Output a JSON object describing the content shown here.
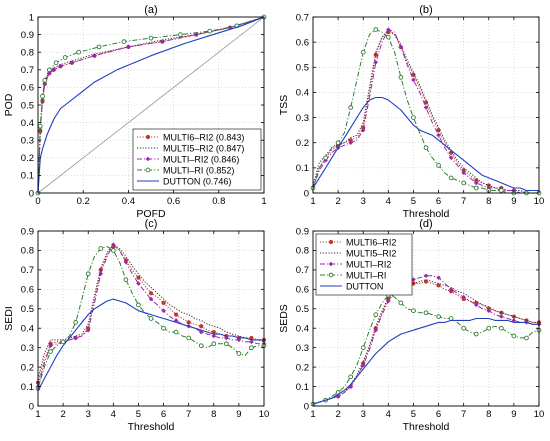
{
  "chart_data": [
    {
      "type": "line",
      "panel_label": "(a)",
      "xlabel": "POFD",
      "ylabel": "POD",
      "xlim": [
        0,
        1
      ],
      "ylim": [
        0,
        1
      ],
      "xticks": [
        "0",
        "0.2",
        "0.4",
        "0.6",
        "0.8",
        "1"
      ],
      "yticks": [
        "0",
        "0.1",
        "0.2",
        "0.3",
        "0.4",
        "0.5",
        "0.6",
        "0.7",
        "0.8",
        "0.9",
        "1"
      ],
      "grid": true,
      "legend": "bottom-right",
      "reference_line": "diagonal",
      "series": [
        {
          "name": "MULTI6–RI2 (0.843)",
          "color": "#c0392b",
          "style": "dotted-circle",
          "x": [
            0,
            0.01,
            0.02,
            0.03,
            0.05,
            0.07,
            0.1,
            0.15,
            0.25,
            0.4,
            0.55,
            0.7,
            0.85,
            1.0
          ],
          "y": [
            0,
            0.35,
            0.52,
            0.62,
            0.68,
            0.7,
            0.72,
            0.74,
            0.78,
            0.83,
            0.86,
            0.9,
            0.94,
            1.0
          ]
        },
        {
          "name": "MULTI5–RI2 (0.847)",
          "color": "#333333",
          "style": "dotted",
          "x": [
            0,
            0.01,
            0.02,
            0.03,
            0.05,
            0.07,
            0.1,
            0.15,
            0.25,
            0.4,
            0.55,
            0.7,
            0.85,
            1.0
          ],
          "y": [
            0,
            0.37,
            0.54,
            0.63,
            0.69,
            0.71,
            0.73,
            0.75,
            0.79,
            0.83,
            0.87,
            0.9,
            0.94,
            1.0
          ]
        },
        {
          "name": "MULTI–RI2 (0.846)",
          "color": "#9b27b0",
          "style": "dashdot-diamond",
          "x": [
            0,
            0.01,
            0.02,
            0.03,
            0.05,
            0.07,
            0.1,
            0.15,
            0.25,
            0.4,
            0.55,
            0.7,
            0.85,
            1.0
          ],
          "y": [
            0,
            0.36,
            0.53,
            0.62,
            0.68,
            0.7,
            0.72,
            0.74,
            0.78,
            0.83,
            0.86,
            0.9,
            0.94,
            1.0
          ]
        },
        {
          "name": "MULTI–RI (0.852)",
          "color": "#2e7d32",
          "style": "dashdot-circle",
          "x": [
            0,
            0.01,
            0.02,
            0.03,
            0.05,
            0.08,
            0.12,
            0.18,
            0.27,
            0.38,
            0.5,
            0.63,
            0.76,
            0.88,
            1.0
          ],
          "y": [
            0,
            0.38,
            0.55,
            0.64,
            0.7,
            0.74,
            0.77,
            0.8,
            0.83,
            0.86,
            0.88,
            0.9,
            0.92,
            0.95,
            1.0
          ]
        },
        {
          "name": "DUTTON (0.746)",
          "color": "#1f3fbf",
          "style": "solid",
          "x": [
            0,
            0.01,
            0.02,
            0.04,
            0.07,
            0.1,
            0.15,
            0.25,
            0.35,
            0.5,
            0.65,
            0.8,
            0.9,
            1.0
          ],
          "y": [
            0,
            0.2,
            0.25,
            0.33,
            0.42,
            0.48,
            0.53,
            0.63,
            0.7,
            0.78,
            0.85,
            0.91,
            0.95,
            1.0
          ]
        }
      ]
    },
    {
      "type": "line",
      "panel_label": "(b)",
      "xlabel": "Threshold",
      "ylabel": "TSS",
      "xlim": [
        1,
        10
      ],
      "ylim": [
        0,
        0.7
      ],
      "xticks": [
        "1",
        "2",
        "3",
        "4",
        "5",
        "6",
        "7",
        "8",
        "9",
        "10"
      ],
      "yticks": [
        "0",
        "0.1",
        "0.2",
        "0.3",
        "0.4",
        "0.5",
        "0.6",
        "0.7"
      ],
      "grid": true,
      "x": [
        1,
        1.25,
        1.5,
        1.75,
        2,
        2.25,
        2.5,
        2.75,
        3,
        3.25,
        3.5,
        3.75,
        4,
        4.25,
        4.5,
        4.75,
        5,
        5.25,
        5.5,
        5.75,
        6,
        6.25,
        6.5,
        6.75,
        7,
        7.25,
        7.5,
        7.75,
        8,
        8.25,
        8.5,
        8.75,
        9,
        9.25,
        9.5,
        9.75,
        10
      ],
      "series": [
        {
          "name": "MULTI6–RI2",
          "color": "#c0392b",
          "style": "dotted-circle",
          "values": [
            0.02,
            0.1,
            0.14,
            0.17,
            0.19,
            0.2,
            0.21,
            0.22,
            0.26,
            0.4,
            0.55,
            0.62,
            0.64,
            0.63,
            0.58,
            0.52,
            0.47,
            0.42,
            0.36,
            0.3,
            0.25,
            0.2,
            0.16,
            0.12,
            0.09,
            0.07,
            0.05,
            0.04,
            0.03,
            0.02,
            0.02,
            0.01,
            0.01,
            0.01,
            0.0,
            0.0,
            0.0
          ]
        },
        {
          "name": "MULTI5–RI2",
          "color": "#333333",
          "style": "dotted",
          "values": [
            0.03,
            0.12,
            0.15,
            0.18,
            0.19,
            0.2,
            0.22,
            0.23,
            0.28,
            0.42,
            0.56,
            0.62,
            0.65,
            0.63,
            0.59,
            0.53,
            0.48,
            0.43,
            0.37,
            0.31,
            0.26,
            0.21,
            0.17,
            0.13,
            0.1,
            0.08,
            0.06,
            0.04,
            0.03,
            0.02,
            0.02,
            0.01,
            0.01,
            0.01,
            0.0,
            0.0,
            0.0
          ]
        },
        {
          "name": "MULTI–RI2",
          "color": "#9b27b0",
          "style": "dashdot-diamond",
          "values": [
            0.02,
            0.09,
            0.13,
            0.16,
            0.18,
            0.19,
            0.2,
            0.21,
            0.25,
            0.38,
            0.52,
            0.6,
            0.65,
            0.64,
            0.58,
            0.51,
            0.45,
            0.4,
            0.34,
            0.28,
            0.23,
            0.18,
            0.14,
            0.11,
            0.08,
            0.06,
            0.04,
            0.03,
            0.02,
            0.02,
            0.01,
            0.01,
            0.01,
            0.0,
            0.0,
            0.0,
            0.0
          ]
        },
        {
          "name": "MULTI–RI",
          "color": "#2e7d32",
          "style": "dashdot-circle",
          "values": [
            0.02,
            0.1,
            0.14,
            0.18,
            0.2,
            0.24,
            0.34,
            0.45,
            0.56,
            0.63,
            0.65,
            0.64,
            0.62,
            0.56,
            0.46,
            0.37,
            0.3,
            0.24,
            0.18,
            0.14,
            0.11,
            0.08,
            0.06,
            0.05,
            0.04,
            0.03,
            0.02,
            0.02,
            0.01,
            0.01,
            0.01,
            0.0,
            0.0,
            0.0,
            0.0,
            0.0,
            0.0
          ]
        },
        {
          "name": "DUTTON",
          "color": "#1f3fbf",
          "style": "solid",
          "values": [
            0.02,
            0.06,
            0.1,
            0.14,
            0.18,
            0.22,
            0.26,
            0.3,
            0.34,
            0.37,
            0.38,
            0.38,
            0.37,
            0.35,
            0.33,
            0.3,
            0.27,
            0.25,
            0.24,
            0.23,
            0.21,
            0.19,
            0.17,
            0.15,
            0.13,
            0.11,
            0.09,
            0.07,
            0.06,
            0.05,
            0.04,
            0.03,
            0.02,
            0.02,
            0.01,
            0.01,
            0.01
          ]
        }
      ]
    },
    {
      "type": "line",
      "panel_label": "(c)",
      "xlabel": "Threshold",
      "ylabel": "SEDI",
      "xlim": [
        1,
        10
      ],
      "ylim": [
        0,
        0.9
      ],
      "xticks": [
        "1",
        "2",
        "3",
        "4",
        "5",
        "6",
        "7",
        "8",
        "9",
        "10"
      ],
      "yticks": [
        "0",
        "0.1",
        "0.2",
        "0.3",
        "0.4",
        "0.5",
        "0.6",
        "0.7",
        "0.8",
        "0.9"
      ],
      "grid": true,
      "x": [
        1,
        1.25,
        1.5,
        1.75,
        2,
        2.25,
        2.5,
        2.75,
        3,
        3.25,
        3.5,
        3.75,
        4,
        4.25,
        4.5,
        4.75,
        5,
        5.25,
        5.5,
        5.75,
        6,
        6.25,
        6.5,
        6.75,
        7,
        7.25,
        7.5,
        7.75,
        8,
        8.25,
        8.5,
        8.75,
        9,
        9.25,
        9.5,
        9.75,
        10
      ],
      "series": [
        {
          "name": "MULTI6–RI2",
          "color": "#c0392b",
          "style": "dotted-circle",
          "values": [
            0.12,
            0.24,
            0.32,
            0.33,
            0.33,
            0.34,
            0.35,
            0.36,
            0.4,
            0.55,
            0.7,
            0.78,
            0.82,
            0.8,
            0.75,
            0.7,
            0.66,
            0.62,
            0.58,
            0.56,
            0.53,
            0.5,
            0.47,
            0.45,
            0.43,
            0.42,
            0.41,
            0.39,
            0.38,
            0.37,
            0.36,
            0.36,
            0.35,
            0.35,
            0.35,
            0.34,
            0.34
          ]
        },
        {
          "name": "MULTI5–RI2",
          "color": "#333333",
          "style": "dotted",
          "values": [
            0.14,
            0.27,
            0.34,
            0.34,
            0.34,
            0.35,
            0.36,
            0.37,
            0.42,
            0.57,
            0.71,
            0.79,
            0.83,
            0.81,
            0.77,
            0.72,
            0.68,
            0.64,
            0.61,
            0.58,
            0.55,
            0.52,
            0.5,
            0.48,
            0.47,
            0.45,
            0.44,
            0.42,
            0.41,
            0.4,
            0.38,
            0.37,
            0.36,
            0.35,
            0.34,
            0.34,
            0.33
          ]
        },
        {
          "name": "MULTI–RI2",
          "color": "#9b27b0",
          "style": "dashdot-diamond",
          "values": [
            0.1,
            0.22,
            0.31,
            0.32,
            0.33,
            0.34,
            0.35,
            0.36,
            0.39,
            0.53,
            0.68,
            0.77,
            0.83,
            0.8,
            0.74,
            0.68,
            0.63,
            0.59,
            0.55,
            0.52,
            0.49,
            0.46,
            0.44,
            0.42,
            0.41,
            0.4,
            0.38,
            0.37,
            0.36,
            0.35,
            0.35,
            0.34,
            0.34,
            0.33,
            0.33,
            0.32,
            0.32
          ]
        },
        {
          "name": "MULTI–RI",
          "color": "#2e7d32",
          "style": "dashdot-circle",
          "values": [
            0.09,
            0.2,
            0.28,
            0.31,
            0.33,
            0.36,
            0.43,
            0.55,
            0.68,
            0.77,
            0.81,
            0.82,
            0.8,
            0.74,
            0.65,
            0.58,
            0.52,
            0.48,
            0.45,
            0.43,
            0.4,
            0.38,
            0.38,
            0.36,
            0.35,
            0.33,
            0.31,
            0.3,
            0.32,
            0.32,
            0.32,
            0.3,
            0.27,
            0.26,
            0.3,
            0.31,
            0.31
          ]
        },
        {
          "name": "DUTTON",
          "color": "#1f3fbf",
          "style": "solid",
          "values": [
            0.08,
            0.14,
            0.2,
            0.26,
            0.31,
            0.35,
            0.39,
            0.43,
            0.47,
            0.5,
            0.52,
            0.54,
            0.55,
            0.54,
            0.53,
            0.51,
            0.49,
            0.48,
            0.47,
            0.46,
            0.45,
            0.44,
            0.43,
            0.42,
            0.41,
            0.4,
            0.39,
            0.38,
            0.37,
            0.37,
            0.36,
            0.36,
            0.35,
            0.35,
            0.34,
            0.34,
            0.34
          ]
        }
      ]
    },
    {
      "type": "line",
      "panel_label": "(d)",
      "xlabel": "Threshold",
      "ylabel": "SEDS",
      "xlim": [
        1,
        10
      ],
      "ylim": [
        0,
        0.9
      ],
      "xticks": [
        "1",
        "2",
        "3",
        "4",
        "5",
        "6",
        "7",
        "8",
        "9",
        "10"
      ],
      "yticks": [
        "0",
        "0.1",
        "0.2",
        "0.3",
        "0.4",
        "0.5",
        "0.6",
        "0.7",
        "0.8",
        "0.9"
      ],
      "grid": true,
      "legend": "top-left",
      "x": [
        1,
        1.25,
        1.5,
        1.75,
        2,
        2.25,
        2.5,
        2.75,
        3,
        3.25,
        3.5,
        3.75,
        4,
        4.25,
        4.5,
        4.75,
        5,
        5.25,
        5.5,
        5.75,
        6,
        6.25,
        6.5,
        6.75,
        7,
        7.25,
        7.5,
        7.75,
        8,
        8.25,
        8.5,
        8.75,
        9,
        9.25,
        9.5,
        9.75,
        10
      ],
      "series": [
        {
          "name": "MULTI6–RI2",
          "color": "#c0392b",
          "style": "dotted-circle",
          "values": [
            0.01,
            0.02,
            0.03,
            0.04,
            0.05,
            0.07,
            0.1,
            0.15,
            0.22,
            0.3,
            0.4,
            0.48,
            0.55,
            0.58,
            0.6,
            0.62,
            0.63,
            0.63,
            0.64,
            0.63,
            0.62,
            0.6,
            0.59,
            0.57,
            0.55,
            0.54,
            0.53,
            0.52,
            0.5,
            0.49,
            0.48,
            0.47,
            0.46,
            0.45,
            0.44,
            0.43,
            0.43
          ]
        },
        {
          "name": "MULTI5–RI2",
          "color": "#333333",
          "style": "dotted",
          "values": [
            0.01,
            0.02,
            0.03,
            0.04,
            0.05,
            0.07,
            0.11,
            0.16,
            0.23,
            0.31,
            0.41,
            0.49,
            0.56,
            0.59,
            0.61,
            0.62,
            0.63,
            0.64,
            0.65,
            0.64,
            0.63,
            0.62,
            0.61,
            0.59,
            0.58,
            0.56,
            0.54,
            0.52,
            0.51,
            0.49,
            0.48,
            0.47,
            0.46,
            0.45,
            0.44,
            0.43,
            0.43
          ]
        },
        {
          "name": "MULTI–RI2",
          "color": "#9b27b0",
          "style": "dashdot-diamond",
          "values": [
            0.01,
            0.02,
            0.03,
            0.04,
            0.05,
            0.07,
            0.1,
            0.15,
            0.21,
            0.29,
            0.39,
            0.47,
            0.54,
            0.58,
            0.61,
            0.63,
            0.65,
            0.66,
            0.67,
            0.67,
            0.66,
            0.63,
            0.6,
            0.58,
            0.56,
            0.54,
            0.52,
            0.5,
            0.49,
            0.47,
            0.46,
            0.45,
            0.44,
            0.43,
            0.43,
            0.42,
            0.42
          ]
        },
        {
          "name": "MULTI–RI",
          "color": "#2e7d32",
          "style": "dashdot-circle",
          "values": [
            0.01,
            0.02,
            0.03,
            0.05,
            0.07,
            0.1,
            0.15,
            0.21,
            0.3,
            0.39,
            0.47,
            0.53,
            0.57,
            0.56,
            0.53,
            0.5,
            0.49,
            0.48,
            0.48,
            0.47,
            0.46,
            0.45,
            0.45,
            0.43,
            0.4,
            0.38,
            0.37,
            0.38,
            0.4,
            0.41,
            0.4,
            0.38,
            0.36,
            0.35,
            0.35,
            0.38,
            0.39
          ]
        },
        {
          "name": "DUTTON",
          "color": "#1f3fbf",
          "style": "solid",
          "values": [
            0.01,
            0.02,
            0.03,
            0.04,
            0.06,
            0.08,
            0.11,
            0.15,
            0.19,
            0.23,
            0.27,
            0.3,
            0.33,
            0.35,
            0.37,
            0.38,
            0.39,
            0.4,
            0.41,
            0.42,
            0.43,
            0.43,
            0.44,
            0.44,
            0.44,
            0.44,
            0.45,
            0.45,
            0.45,
            0.44,
            0.44,
            0.44,
            0.43,
            0.43,
            0.43,
            0.42,
            0.42
          ]
        }
      ]
    }
  ]
}
